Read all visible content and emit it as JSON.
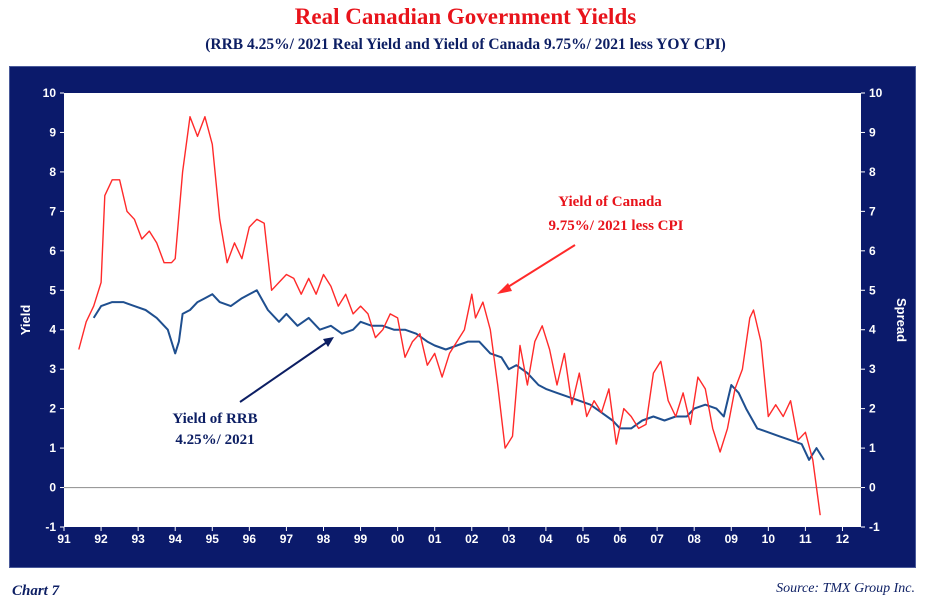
{
  "title": "Real Canadian Government Yields",
  "subtitle": "(RRB 4.25%/ 2021 Real Yield and Yield of Canada 9.75%/ 2021 less YOY CPI)",
  "footer": {
    "chart_label": "Chart 7",
    "source": "Source: TMX Group Inc."
  },
  "colors": {
    "frame": "#0b1a6b",
    "rrb": "#1f4f8f",
    "canada": "#ff2a2a",
    "red_text": "#e8131b",
    "navy_text": "#0c1e63"
  },
  "annotations": {
    "canada_line1": "Yield of Canada",
    "canada_line2": "9.75%/ 2021 less CPI",
    "rrb_line1": "Yield of RRB",
    "rrb_line2": "4.25%/ 2021"
  },
  "chart_data": {
    "type": "line",
    "xlabel": "",
    "ylabel": "Yield",
    "y2label": "Spread",
    "xlim": [
      1991,
      2012.5
    ],
    "ylim": [
      -1,
      10
    ],
    "x_ticks": [
      "91",
      "92",
      "93",
      "94",
      "95",
      "96",
      "97",
      "98",
      "99",
      "00",
      "01",
      "02",
      "03",
      "04",
      "05",
      "06",
      "07",
      "08",
      "09",
      "10",
      "11",
      "12"
    ],
    "y_ticks": [
      "-1",
      "0",
      "1",
      "2",
      "3",
      "4",
      "5",
      "6",
      "7",
      "8",
      "9",
      "10"
    ],
    "grid": false,
    "zero_line": true,
    "series": [
      {
        "name": "Yield of RRB 4.25%/ 2021",
        "color": "#1f4f8f",
        "x": [
          1991.8,
          1992.0,
          1992.3,
          1992.6,
          1992.9,
          1993.2,
          1993.5,
          1993.8,
          1994.0,
          1994.1,
          1994.2,
          1994.4,
          1994.6,
          1994.8,
          1995.0,
          1995.2,
          1995.5,
          1995.8,
          1996.0,
          1996.2,
          1996.5,
          1996.8,
          1997.0,
          1997.3,
          1997.6,
          1997.9,
          1998.2,
          1998.5,
          1998.8,
          1999.0,
          1999.3,
          1999.6,
          1999.9,
          2000.2,
          2000.5,
          2000.8,
          2001.0,
          2001.3,
          2001.6,
          2001.9,
          2002.2,
          2002.5,
          2002.8,
          2003.0,
          2003.2,
          2003.5,
          2003.8,
          2004.0,
          2004.3,
          2004.6,
          2004.9,
          2005.2,
          2005.5,
          2005.8,
          2006.0,
          2006.3,
          2006.6,
          2006.9,
          2007.2,
          2007.5,
          2007.8,
          2008.0,
          2008.3,
          2008.6,
          2008.8,
          2009.0,
          2009.2,
          2009.4,
          2009.7,
          2010.0,
          2010.3,
          2010.6,
          2010.9,
          2011.1,
          2011.3,
          2011.5
        ],
        "y": [
          4.3,
          4.6,
          4.7,
          4.7,
          4.6,
          4.5,
          4.3,
          4.0,
          3.4,
          3.7,
          4.4,
          4.5,
          4.7,
          4.8,
          4.9,
          4.7,
          4.6,
          4.8,
          4.9,
          5.0,
          4.5,
          4.2,
          4.4,
          4.1,
          4.3,
          4.0,
          4.1,
          3.9,
          4.0,
          4.2,
          4.1,
          4.1,
          4.0,
          4.0,
          3.9,
          3.7,
          3.6,
          3.5,
          3.6,
          3.7,
          3.7,
          3.4,
          3.3,
          3.0,
          3.1,
          2.9,
          2.6,
          2.5,
          2.4,
          2.3,
          2.2,
          2.1,
          1.9,
          1.7,
          1.5,
          1.5,
          1.7,
          1.8,
          1.7,
          1.8,
          1.8,
          2.0,
          2.1,
          2.0,
          1.8,
          2.6,
          2.4,
          2.0,
          1.5,
          1.4,
          1.3,
          1.2,
          1.1,
          0.7,
          1.0,
          0.7
        ]
      },
      {
        "name": "Yield of Canada 9.75%/ 2021 less CPI",
        "color": "#ff2a2a",
        "x": [
          1991.4,
          1991.6,
          1991.8,
          1992.0,
          1992.1,
          1992.3,
          1992.5,
          1992.7,
          1992.9,
          1993.1,
          1993.3,
          1993.5,
          1993.7,
          1993.9,
          1994.0,
          1994.2,
          1994.4,
          1994.6,
          1994.8,
          1995.0,
          1995.2,
          1995.4,
          1995.6,
          1995.8,
          1996.0,
          1996.2,
          1996.4,
          1996.6,
          1996.8,
          1997.0,
          1997.2,
          1997.4,
          1997.6,
          1997.8,
          1998.0,
          1998.2,
          1998.4,
          1998.6,
          1998.8,
          1999.0,
          1999.2,
          1999.4,
          1999.6,
          1999.8,
          2000.0,
          2000.2,
          2000.4,
          2000.6,
          2000.8,
          2001.0,
          2001.2,
          2001.4,
          2001.6,
          2001.8,
          2002.0,
          2002.1,
          2002.3,
          2002.5,
          2002.7,
          2002.9,
          2003.1,
          2003.3,
          2003.5,
          2003.7,
          2003.9,
          2004.1,
          2004.3,
          2004.5,
          2004.7,
          2004.9,
          2005.1,
          2005.3,
          2005.5,
          2005.7,
          2005.9,
          2006.1,
          2006.3,
          2006.5,
          2006.7,
          2006.9,
          2007.1,
          2007.3,
          2007.5,
          2007.7,
          2007.9,
          2008.1,
          2008.3,
          2008.5,
          2008.7,
          2008.9,
          2009.1,
          2009.3,
          2009.5,
          2009.6,
          2009.8,
          2010.0,
          2010.2,
          2010.4,
          2010.6,
          2010.8,
          2011.0,
          2011.2,
          2011.4
        ],
        "y": [
          3.5,
          4.2,
          4.6,
          5.2,
          7.4,
          7.8,
          7.8,
          7.0,
          6.8,
          6.3,
          6.5,
          6.2,
          5.7,
          5.7,
          5.8,
          8.0,
          9.4,
          8.9,
          9.4,
          8.7,
          6.8,
          5.7,
          6.2,
          5.8,
          6.6,
          6.8,
          6.7,
          5.0,
          5.2,
          5.4,
          5.3,
          4.9,
          5.3,
          4.9,
          5.4,
          5.1,
          4.6,
          4.9,
          4.4,
          4.6,
          4.4,
          3.8,
          4.0,
          4.4,
          4.3,
          3.3,
          3.7,
          3.9,
          3.1,
          3.4,
          2.8,
          3.4,
          3.7,
          4.0,
          4.9,
          4.3,
          4.7,
          4.0,
          2.6,
          1.0,
          1.3,
          3.6,
          2.6,
          3.7,
          4.1,
          3.5,
          2.6,
          3.4,
          2.1,
          2.9,
          1.8,
          2.2,
          1.9,
          2.5,
          1.1,
          2.0,
          1.8,
          1.5,
          1.6,
          2.9,
          3.2,
          2.2,
          1.8,
          2.4,
          1.6,
          2.8,
          2.5,
          1.5,
          0.9,
          1.5,
          2.5,
          3.0,
          4.3,
          4.5,
          3.7,
          1.8,
          2.1,
          1.8,
          2.2,
          1.2,
          1.4,
          0.7,
          -0.7
        ]
      }
    ]
  }
}
